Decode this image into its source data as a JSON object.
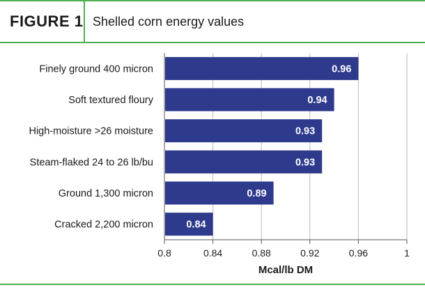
{
  "figure": {
    "label": "FIGURE 1",
    "title": "Shelled corn energy values"
  },
  "colors": {
    "bar": "#2e3a8c",
    "rule": "#4caf50",
    "grid": "#bbbbbb"
  },
  "chart_data": {
    "type": "bar",
    "orientation": "horizontal",
    "categories": [
      "Finely ground 400 micron",
      "Soft textured floury",
      "High-moisture >26 moisture",
      "Steam-flaked 24 to 26 lb/bu",
      "Ground 1,300 micron",
      "Cracked 2,200 micron"
    ],
    "values": [
      0.96,
      0.94,
      0.93,
      0.93,
      0.89,
      0.84
    ],
    "value_labels": [
      "0.96",
      "0.94",
      "0.93",
      "0.93",
      "0.89",
      "0.84"
    ],
    "xlabel": "Mcal/lb DM",
    "xlim": [
      0.8,
      1
    ],
    "ticks": [
      0.8,
      0.84,
      0.88,
      0.92,
      0.96,
      1
    ],
    "tick_labels": [
      "0.8",
      "0.84",
      "0.88",
      "0.92",
      "0.96",
      "1"
    ],
    "grid": true
  }
}
